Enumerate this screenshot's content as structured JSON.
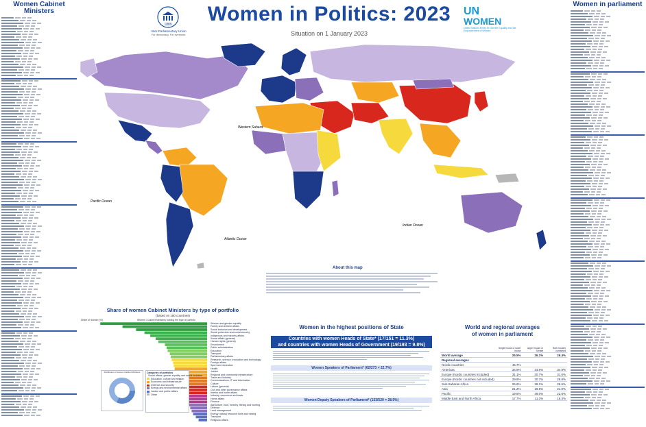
{
  "header": {
    "title": "Women in Politics: 2023",
    "subtitle": "Situation on 1 January 2023",
    "ipu_name": "Inter-Parliamentary Union",
    "ipu_tagline": "For democracy. For everyone.",
    "ipu_year": "1889",
    "unwomen_un": "UN",
    "unwomen_women": "WOMEN",
    "unwomen_tagline": "United Nations Entity for Gender Equality and the Empowerment of Women"
  },
  "left_panel": {
    "title_line1": "Women Cabinet",
    "title_line2": "Ministers"
  },
  "right_panel": {
    "title": "Women in parliament"
  },
  "map": {
    "colors": {
      "ocean": "#ffffff",
      "darkblue": "#1d3a8a",
      "purple": "#8b6fb8",
      "lavender": "#c7b6e0",
      "lightpurple": "#a48acb",
      "orange": "#f5a623",
      "yellow": "#f6d93c",
      "red": "#d8281e",
      "grey": "#b7b7b7"
    },
    "ocean_labels": [
      "Pacific Ocean",
      "Atlantic Ocean",
      "Indian Ocean",
      "Western Sahara"
    ],
    "about_title": "About this map"
  },
  "portfolio": {
    "title": "Share of women Cabinet Ministers by type of portfolio",
    "subtitle": "(based on 180 countries)",
    "axis_label": "Share of women (%)",
    "column_header": "Women / Cabinet Ministers holding the type of portfolio",
    "donut_title": "Distribution of women Cabinet Ministers",
    "legend_title": "Categories of portfolios",
    "legend": [
      "Social affairs, gender equality and social inclusion",
      "Education, culture and religion",
      "Economic and infrastructure",
      "Defense and security",
      "Energy and environmental affairs",
      "Justice and public affairs",
      "Other"
    ],
    "portfolios": [
      "Women and gender equality",
      "Family and children affairs",
      "Social inclusion and development",
      "Social protection and social security",
      "Indigenous and minority affairs",
      "Social affairs (general)",
      "Human rights (general)",
      "Environment",
      "Public administration",
      "Education",
      "Transport",
      "Parliamentary affairs",
      "Research, science, innovation and technology",
      "Foreign affairs",
      "Sport and recreation",
      "Health",
      "Justice",
      "Regional and community infrastructure",
      "Trade and industry",
      "Communications, IT and information",
      "Culture",
      "Labour (general)",
      "Civil and other governance affairs",
      "Interior and home affairs",
      "Industry, commerce and trade",
      "Home affairs",
      "Finance",
      "Agriculture, food, forestry, fishing and hunting",
      "Defence",
      "Land management",
      "Energy, natural resource fuels and mining",
      "Transport",
      "Religious affairs"
    ],
    "values": [
      84.2,
      66.7,
      56.0,
      49.4,
      44.8,
      40.5,
      38.4,
      33.3,
      31.9,
      31.1,
      29.4,
      28.6,
      27.9,
      26.8,
      26.3,
      25.6,
      24.7,
      24.0,
      23.1,
      22.6,
      21.9,
      20.9,
      19.8,
      18.9,
      17.2,
      16.1,
      15.6,
      14.8,
      13.3,
      12.2,
      11.0,
      8.9,
      6.7
    ]
  },
  "positions": {
    "title": "Women in the highest positions of State",
    "heads_band": "Countries with women Heads of State* (17/151 = 11.3%)",
    "heads_band2": "and countries with women Heads of Government (19/193 = 9.8%)",
    "speakers_band": "Women Speakers of Parliament* (62/273 = 22.7%)",
    "deputy_band": "Women Deputy Speakers of Parliament* (153/529 = 28.9%)"
  },
  "averages": {
    "title": "World and regional averages",
    "title2": "of women in parliament",
    "col_single": "Single house or lower house",
    "col_upper": "Upper house or Senate",
    "col_both": "Both houses combined",
    "world_label": "World average",
    "world_values": [
      "26.5%",
      "26.1%",
      "26.4%"
    ],
    "regional_label": "Regional averages",
    "rows": [
      {
        "name": "Nordic countries",
        "v": [
          "45.7%",
          "",
          ""
        ]
      },
      {
        "name": "Americas",
        "v": [
          "34.9%",
          "34.6%",
          "34.9%"
        ]
      },
      {
        "name": "Europe (Nordic countries included)",
        "v": [
          "31.1%",
          "30.7%",
          "31.0%"
        ]
      },
      {
        "name": "Europe (Nordic countries not included)",
        "v": [
          "29.8%",
          "30.7%",
          "29.8%"
        ]
      },
      {
        "name": "Sub-Saharan Africa",
        "v": [
          "26.6%",
          "28.1%",
          "26.6%"
        ]
      },
      {
        "name": "Asia",
        "v": [
          "21.2%",
          "19.6%",
          "21.0%"
        ]
      },
      {
        "name": "Pacific",
        "v": [
          "19.6%",
          "49.0%",
          "22.6%"
        ]
      },
      {
        "name": "Middle East and North Africa",
        "v": [
          "17.7%",
          "11.3%",
          "16.3%"
        ]
      }
    ]
  }
}
